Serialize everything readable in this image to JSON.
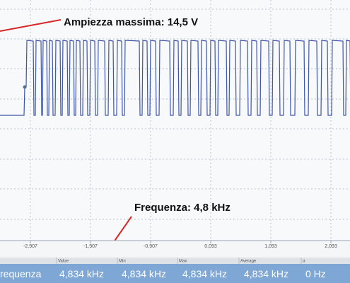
{
  "annotations": {
    "amplitude": "Ampiezza massima: 14,5 V",
    "frequency": "Frequenza: 4,8 kHz"
  },
  "x_axis": {
    "ticks": [
      "-2,907",
      "-1,907",
      "-0,907",
      "0,093",
      "1,093",
      "2,093"
    ]
  },
  "measurements": {
    "headers": [
      "Value",
      "Min",
      "Max",
      "Average",
      "σ"
    ],
    "row": [
      "requenza",
      "4,834 kHz",
      "4,834 kHz",
      "4,834 kHz",
      "4,834 kHz",
      "0 Hz"
    ]
  }
}
